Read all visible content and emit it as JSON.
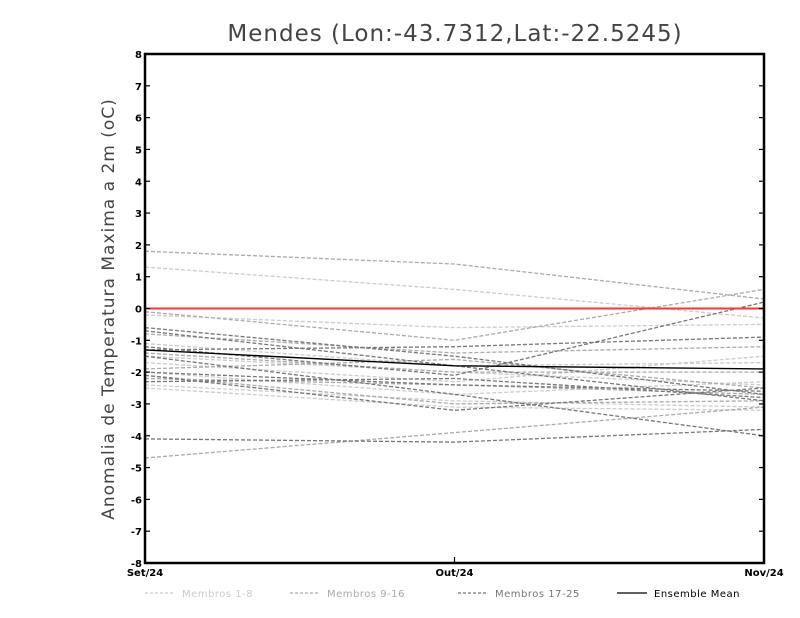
{
  "chart_data": {
    "type": "line",
    "title": "Mendes (Lon:-43.7312,Lat:-22.5245)",
    "ylabel": "Anomalia de Temperatura Maxima a 2m (oC)",
    "xlabel": "",
    "categories": [
      "Set/24",
      "Out/24",
      "Nov/24"
    ],
    "ylim": [
      -8,
      8
    ],
    "yticks": [
      -8,
      -7,
      -6,
      -5,
      -4,
      -3,
      -2,
      -1,
      0,
      1,
      2,
      3,
      4,
      5,
      6,
      7,
      8
    ],
    "ytick_labels": [
      "-8",
      "-7",
      "-6",
      "-5",
      "-4",
      "-3",
      "-2",
      "-1",
      "0",
      "1",
      "2",
      "3",
      "4",
      "5",
      "6",
      "7",
      "8"
    ],
    "grid": false,
    "legend_position": "bottom",
    "reference_line": {
      "y": 0,
      "color": "#ff3333"
    },
    "groups": [
      {
        "label": "Membros 1-8",
        "color": "#cccccc",
        "dashed": true
      },
      {
        "label": "Membros 9-16",
        "color": "#aaaaaa",
        "dashed": true
      },
      {
        "label": "Membros 17-25",
        "color": "#777777",
        "dashed": true
      },
      {
        "label": "Ensemble Mean",
        "color": "#000000",
        "dashed": false
      }
    ],
    "series": [
      {
        "group": 0,
        "values": [
          1.3,
          0.6,
          -0.3
        ]
      },
      {
        "group": 0,
        "values": [
          -0.2,
          -0.6,
          -0.5
        ]
      },
      {
        "group": 0,
        "values": [
          -1.7,
          -2.3,
          -1.5
        ]
      },
      {
        "group": 0,
        "values": [
          -2.0,
          -2.7,
          -2.3
        ]
      },
      {
        "group": 0,
        "values": [
          -2.4,
          -2.9,
          -3.1
        ]
      },
      {
        "group": 0,
        "values": [
          -1.1,
          -1.8,
          -1.7
        ]
      },
      {
        "group": 0,
        "values": [
          -2.5,
          -3.1,
          -3.2
        ]
      },
      {
        "group": 0,
        "values": [
          -1.5,
          -2.0,
          -2.4
        ]
      },
      {
        "group": 1,
        "values": [
          1.8,
          1.4,
          0.3
        ]
      },
      {
        "group": 1,
        "values": [
          -4.7,
          -3.9,
          -3.1
        ]
      },
      {
        "group": 1,
        "values": [
          -0.1,
          -1.0,
          0.6
        ]
      },
      {
        "group": 1,
        "values": [
          -1.4,
          -2.0,
          -2.0
        ]
      },
      {
        "group": 1,
        "values": [
          -2.2,
          -2.4,
          -2.7
        ]
      },
      {
        "group": 1,
        "values": [
          -0.8,
          -1.4,
          -1.2
        ]
      },
      {
        "group": 1,
        "values": [
          -1.9,
          -1.6,
          -2.5
        ]
      },
      {
        "group": 1,
        "values": [
          -2.1,
          -3.0,
          -2.9
        ]
      },
      {
        "group": 2,
        "values": [
          -4.1,
          -4.2,
          -3.8
        ]
      },
      {
        "group": 2,
        "values": [
          -0.7,
          -1.8,
          -2.9
        ]
      },
      {
        "group": 2,
        "values": [
          -1.3,
          -1.2,
          -0.9
        ]
      },
      {
        "group": 2,
        "values": [
          -2.0,
          -2.4,
          -2.6
        ]
      },
      {
        "group": 2,
        "values": [
          -2.1,
          -3.2,
          -2.5
        ]
      },
      {
        "group": 2,
        "values": [
          -0.6,
          -1.5,
          -2.7
        ]
      },
      {
        "group": 2,
        "values": [
          -1.5,
          -2.7,
          -4.0
        ]
      },
      {
        "group": 2,
        "values": [
          -1.2,
          -2.1,
          0.2
        ]
      },
      {
        "group": 2,
        "values": [
          -2.3,
          -2.2,
          -2.8
        ]
      },
      {
        "group": 3,
        "values": [
          -1.3,
          -1.8,
          -1.9
        ]
      }
    ]
  },
  "colors": {
    "axis": "#000000",
    "title": "#444444",
    "zero_line": "#ff3333"
  }
}
